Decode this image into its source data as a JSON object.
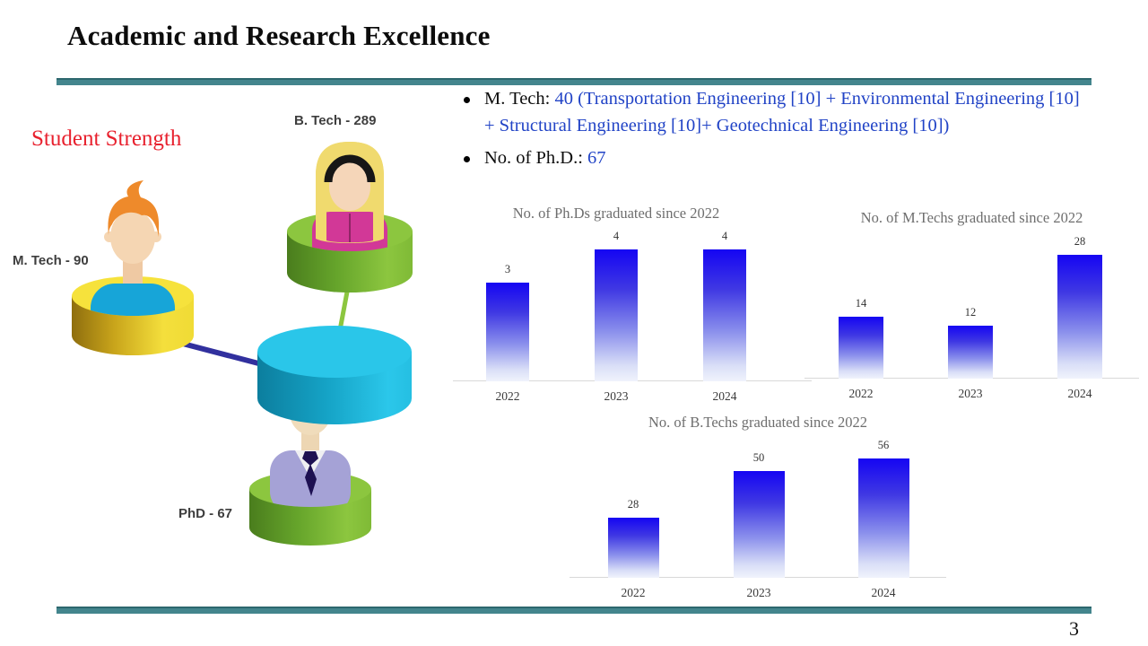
{
  "slide": {
    "title": "Academic and Research Excellence",
    "page_number": "3",
    "accent_teal": "#43858D"
  },
  "bullets": [
    {
      "prefix": "M. Tech: ",
      "highlight": "40 (Transportation Engineering [10] + Environmental Engineering [10] + Structural Engineering [10]+ Geotechnical Engineering [10])"
    },
    {
      "prefix": "No. of  Ph.D.: ",
      "highlight": "67"
    }
  ],
  "infographic": {
    "heading": "Student Strength",
    "heading_color": "#E8212E",
    "labels": {
      "btech": "B. Tech - 289",
      "mtech": "M. Tech - 90",
      "phd": "PhD - 67"
    }
  },
  "chart_data": [
    {
      "type": "bar",
      "title": "No. of Ph.Ds graduated since 2022",
      "categories": [
        "2022",
        "2023",
        "2024"
      ],
      "values": [
        3,
        4,
        4
      ],
      "xlabel": "",
      "ylabel": "",
      "ylim": [
        0,
        4.5
      ],
      "grid": false,
      "legend": "none",
      "bar_color_top": "#1505F3",
      "bar_color_bottom": "#F0F3FC",
      "value_labels": true
    },
    {
      "type": "bar",
      "title": "No. of M.Techs graduated since 2022",
      "categories": [
        "2022",
        "2023",
        "2024"
      ],
      "values": [
        14,
        12,
        28
      ],
      "xlabel": "",
      "ylabel": "",
      "ylim": [
        0,
        32
      ],
      "grid": false,
      "legend": "none",
      "bar_color_top": "#1505F3",
      "bar_color_bottom": "#F0F3FC",
      "value_labels": true
    },
    {
      "type": "bar",
      "title": "No. of B.Techs graduated since 2022",
      "categories": [
        "2022",
        "2023",
        "2024"
      ],
      "values": [
        28,
        50,
        56
      ],
      "xlabel": "",
      "ylabel": "",
      "ylim": [
        0,
        64
      ],
      "grid": false,
      "legend": "none",
      "bar_color_top": "#1505F3",
      "bar_color_bottom": "#F0F3FC",
      "value_labels": true
    }
  ]
}
